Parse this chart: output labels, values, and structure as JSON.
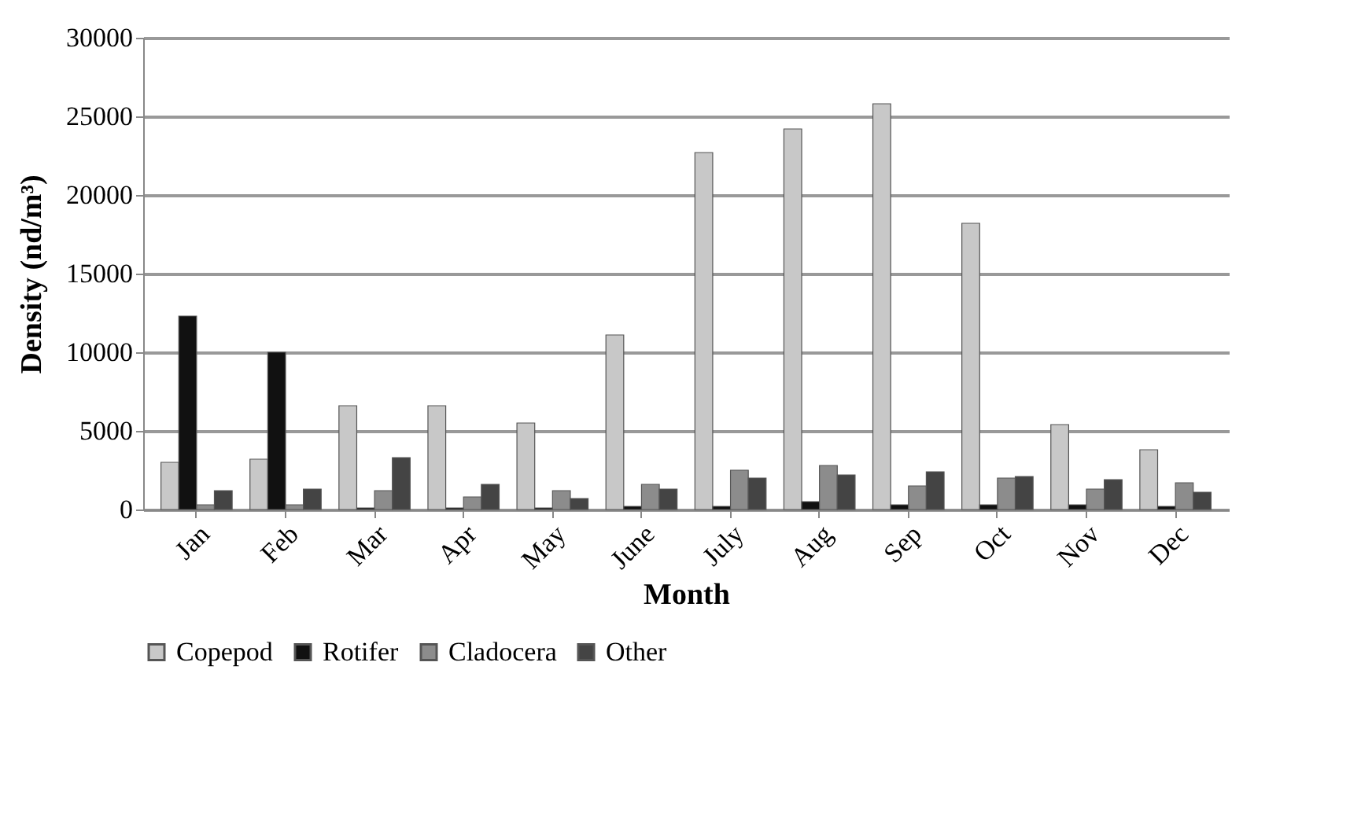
{
  "chart_data": {
    "type": "bar",
    "xlabel": "Month",
    "ylabel": "Density (nd/m³)",
    "categories": [
      "Jan",
      "Feb",
      "Mar",
      "Apr",
      "May",
      "June",
      "July",
      "Aug",
      "Sep",
      "Oct",
      "Nov",
      "Dec"
    ],
    "series": [
      {
        "name": "Copepod",
        "color": "#c8c8c8",
        "values": [
          3000,
          3200,
          6600,
          6600,
          5500,
          11100,
          22700,
          24200,
          25800,
          18200,
          5400,
          3800
        ]
      },
      {
        "name": "Rotifer",
        "color": "#111111",
        "values": [
          12300,
          10000,
          100,
          100,
          100,
          200,
          200,
          500,
          300,
          300,
          300,
          200
        ]
      },
      {
        "name": "Cladocera",
        "color": "#8c8c8c",
        "values": [
          300,
          300,
          1200,
          800,
          1200,
          1600,
          2500,
          2800,
          1500,
          2000,
          1300,
          1700
        ]
      },
      {
        "name": "Other",
        "color": "#444444",
        "values": [
          1200,
          1300,
          3300,
          1600,
          700,
          1300,
          2000,
          2200,
          2400,
          2100,
          1900,
          1100
        ]
      }
    ],
    "ylim": [
      0,
      30000
    ],
    "yticks": [
      0,
      5000,
      10000,
      15000,
      20000,
      25000,
      30000
    ],
    "grid": "y",
    "legend": "bottom"
  }
}
